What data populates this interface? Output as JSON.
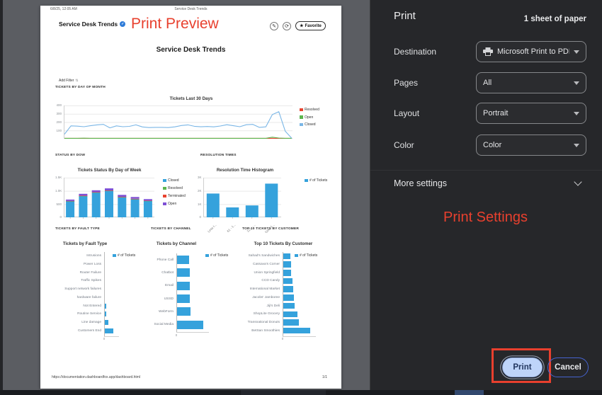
{
  "colors": {
    "annotation_red": "#e8402e",
    "chart_blue": "#35a2dc",
    "panel_bg": "#26272a",
    "preview_bg": "#5b5d62",
    "print_button_bg": "#bed4f9",
    "cancel_border_blue": "#4663d0"
  },
  "preview": {
    "print_header": {
      "datetime": "6/8/25, 12:05 AM",
      "title": "Service Desk Trends"
    },
    "toolbar": {
      "dashboard_title": "Service Desk Trends",
      "favorite_label": "Favorite"
    },
    "annotation": "Print Preview",
    "page_title": "Service Desk Trends",
    "add_filter": "Add Filter",
    "section_labels": {
      "day_of_month": "TICKETS BY DAY OF MONTH",
      "status_by_dow": "STATUS BY DOW",
      "resolution_times": "RESOLUTION TIMES",
      "fault_type": "TICKETS BY FAULT TYPE",
      "channel": "TICKETS BY CHANNEL",
      "customer": "TOP 10 TICKETS BY CUSTOMER"
    },
    "footer": {
      "url": "https://documentation.dashboardfox.app/dashboard.html",
      "page_num": "1/1"
    }
  },
  "chart_data": [
    {
      "type": "line",
      "title": "Tickets Last 30 Days",
      "ylim": [
        0,
        400
      ],
      "ytick_vals": [
        400,
        300,
        200,
        100
      ],
      "ytick_labels": [
        "400",
        "300",
        "200",
        "100"
      ],
      "legend_position": "right",
      "series": [
        {
          "name": "Resolved",
          "color": "#e8432f",
          "values": [
            0,
            0,
            0,
            0,
            0,
            0,
            0,
            0,
            0,
            0,
            0,
            0,
            0,
            0,
            0,
            0,
            0,
            0,
            0,
            0,
            0,
            0,
            0,
            0,
            0,
            0,
            0,
            0,
            0,
            0,
            0,
            0,
            0,
            0,
            0,
            0
          ]
        },
        {
          "name": "Open",
          "color": "#5cb54e",
          "values": [
            4,
            8,
            10,
            12,
            9,
            6,
            0,
            2,
            8,
            10,
            7,
            2,
            6,
            8,
            5,
            0,
            3,
            8,
            10,
            6,
            0,
            5,
            8,
            3,
            0,
            6,
            9,
            5,
            0,
            2,
            6,
            8,
            24,
            14,
            5,
            2
          ]
        },
        {
          "name": "Closed",
          "color": "#7ab6e6",
          "values": [
            60,
            160,
            157,
            150,
            162,
            172,
            178,
            136,
            160,
            150,
            154,
            172,
            147,
            140,
            142,
            142,
            140,
            148,
            164,
            172,
            155,
            149,
            152,
            148,
            158,
            174,
            162,
            150,
            174,
            178,
            142,
            148,
            295,
            330,
            95,
            5
          ]
        }
      ]
    },
    {
      "type": "stacked-bar",
      "title": "Tickets Status By Day of Week",
      "ylim": [
        0,
        1500
      ],
      "ytick_vals": [
        1500,
        1000,
        500,
        0
      ],
      "ytick_labels": [
        "1.5K",
        "1.0K",
        "500",
        "0"
      ],
      "categories": [
        "",
        "",
        "",
        "",
        "",
        "",
        ""
      ],
      "legend_position": "right",
      "series": [
        {
          "name": "Closed",
          "color": "#35a2dc",
          "values": [
            610,
            800,
            940,
            1000,
            760,
            690,
            620
          ]
        },
        {
          "name": "Resolved",
          "color": "#5cb54e",
          "values": [
            5,
            8,
            6,
            6,
            5,
            5,
            5
          ]
        },
        {
          "name": "Terminated",
          "color": "#e8432f",
          "values": [
            8,
            12,
            8,
            10,
            8,
            8,
            8
          ]
        },
        {
          "name": "Open",
          "color": "#7e4fd4",
          "values": [
            50,
            70,
            70,
            80,
            75,
            65,
            55
          ]
        }
      ]
    },
    {
      "type": "bar",
      "title": "Resolution Time Histogram",
      "ylim": [
        0,
        3000
      ],
      "ytick_vals": [
        3000,
        2000,
        1000,
        0
      ],
      "ytick_labels": [
        "3K",
        "2K",
        "1K",
        "0"
      ],
      "categories": [
        "Less t...",
        "61 - 1...",
        "121 - ...",
        "Over 1..."
      ],
      "legend_position": "right",
      "series": [
        {
          "name": "# of Tickets",
          "color": "#35a2dc",
          "values": [
            1800,
            750,
            900,
            2550
          ]
        }
      ]
    },
    {
      "type": "hbar",
      "title": "Tickets by Fault Type",
      "categories": [
        "Intrusions",
        "Power Loss",
        "Router Failure",
        "Traffic Spikes",
        "Support network failures",
        "hardware failure",
        "Not Entered",
        "Routine Service",
        "Line damage",
        "Customers End"
      ],
      "xticks": [
        "0"
      ],
      "legend_position": "right",
      "series": [
        {
          "name": "# of Tickets",
          "color": "#35a2dc",
          "values": [
            60,
            80,
            100,
            120,
            150,
            180,
            420,
            460,
            900,
            2000
          ]
        }
      ]
    },
    {
      "type": "hbar",
      "title": "Tickets by Channel",
      "categories": [
        "Phone Call",
        "Chatbot",
        "Email",
        "USSD",
        "WebForm",
        "Social Media"
      ],
      "xticks": [
        "0"
      ],
      "legend_position": "right",
      "series": [
        {
          "name": "# of Tickets",
          "color": "#35a2dc",
          "values": [
            950,
            1000,
            1000,
            1000,
            1060,
            2050
          ]
        }
      ]
    },
    {
      "type": "hbar",
      "title": "Top 10 Tickets By Customer",
      "categories": [
        "Sahad's Sandwiches",
        "Cassava's Corner",
        "Union Springfield",
        "CCD Candy",
        "International Market",
        "Jacobs' Jamboree",
        "Jiji's Deli",
        "ShopLite Grocery",
        "Transnational Donuts",
        "BetSan Smoothies"
      ],
      "xticks": [
        "0"
      ],
      "legend_position": "right",
      "series": [
        {
          "name": "# of Tickets",
          "color": "#35a2dc",
          "values": [
            530,
            560,
            580,
            650,
            700,
            760,
            800,
            1000,
            1100,
            1850
          ]
        }
      ]
    }
  ],
  "print_panel": {
    "title": "Print",
    "sheets_info": "1 sheet of paper",
    "fields": [
      {
        "label": "Destination",
        "value": "Microsoft Print to PDF"
      },
      {
        "label": "Pages",
        "value": "All"
      },
      {
        "label": "Layout",
        "value": "Portrait"
      },
      {
        "label": "Color",
        "value": "Color"
      }
    ],
    "more_settings": "More settings",
    "annotation": "Print Settings",
    "buttons": {
      "print": "Print",
      "cancel": "Cancel"
    }
  }
}
